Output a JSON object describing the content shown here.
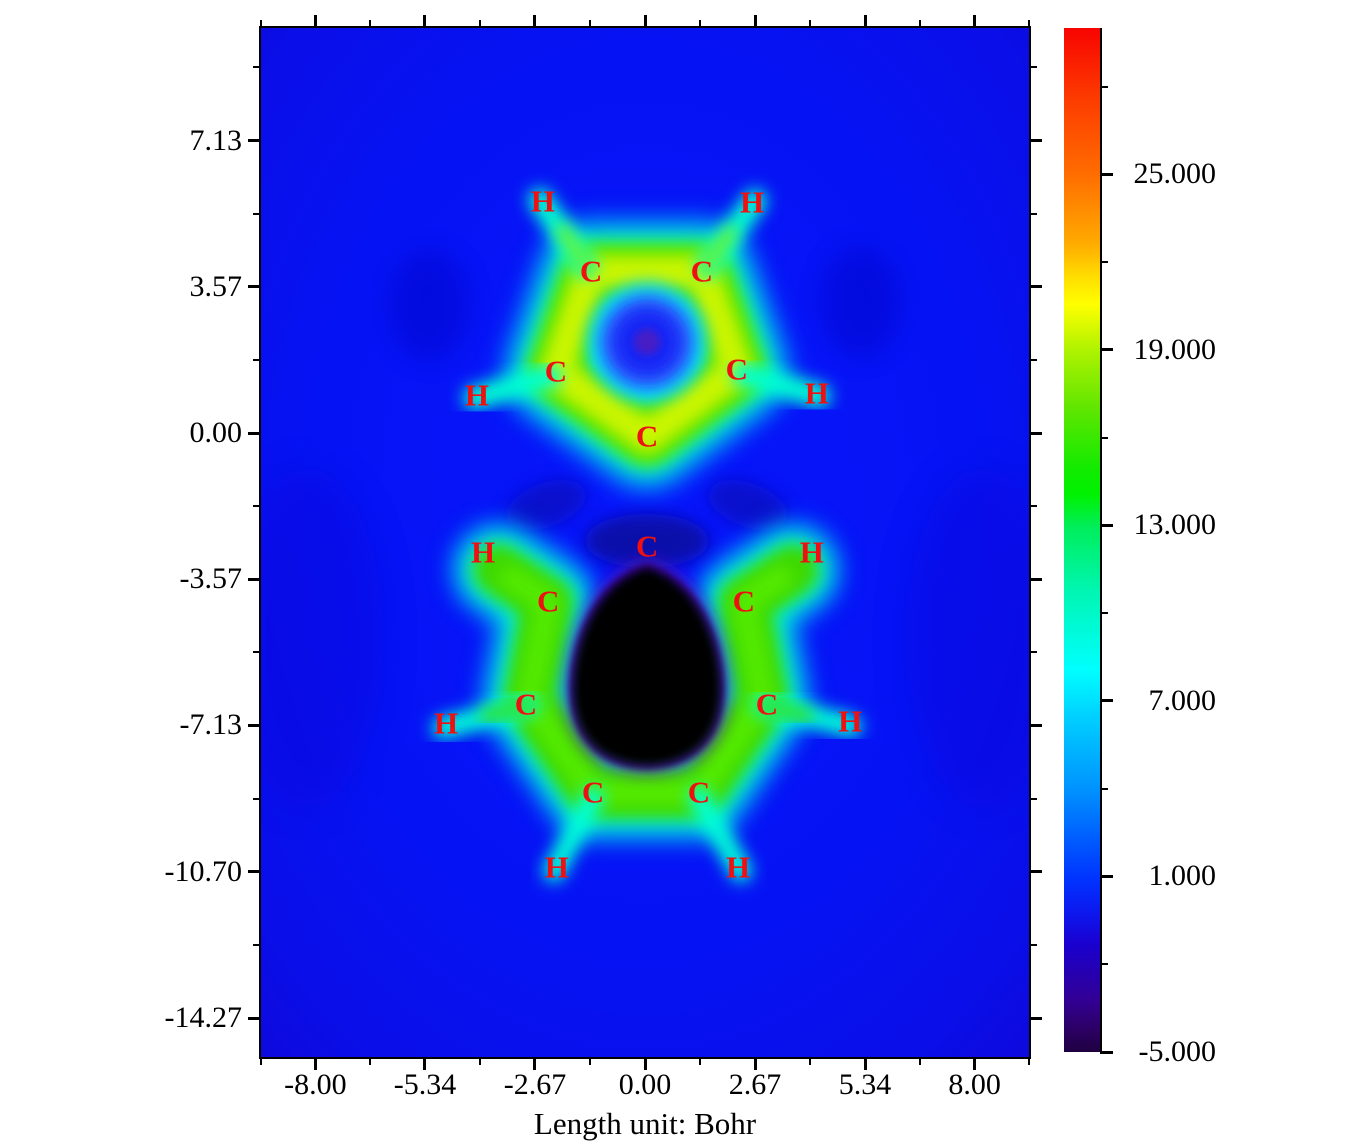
{
  "chart_data": {
    "type": "heatmap",
    "title": "",
    "xlabel": "Length unit: Bohr",
    "x_axis": {
      "major_ticks": [
        {
          "label": "-8.00",
          "value": -8.0
        },
        {
          "label": "-5.34",
          "value": -5.34
        },
        {
          "label": "-2.67",
          "value": -2.67
        },
        {
          "label": "0.00",
          "value": 0.0
        },
        {
          "label": "2.67",
          "value": 2.67
        },
        {
          "label": "5.34",
          "value": 5.34
        },
        {
          "label": "8.00",
          "value": 8.0
        }
      ],
      "minor_tick_values": [
        -9.33,
        -6.67,
        -4.0,
        -1.33,
        1.33,
        4.0,
        6.67,
        9.33
      ],
      "range": [
        -9.33,
        9.33
      ]
    },
    "y_axis": {
      "major_ticks": [
        {
          "label": "7.13",
          "value": 7.13
        },
        {
          "label": "3.57",
          "value": 3.57
        },
        {
          "label": "0.00",
          "value": 0.0
        },
        {
          "label": "-3.57",
          "value": -3.57
        },
        {
          "label": "-7.13",
          "value": -7.13
        },
        {
          "label": "-10.70",
          "value": -10.7
        },
        {
          "label": "-14.27",
          "value": -14.27
        }
      ],
      "minor_tick_values": [
        8.92,
        5.35,
        1.78,
        -1.78,
        -5.35,
        -8.92,
        -12.48
      ],
      "range": [
        -15.22,
        9.86
      ]
    },
    "colorbar": {
      "major_ticks": [
        {
          "label": "25.000",
          "value": 25.0
        },
        {
          "label": "19.000",
          "value": 19.0
        },
        {
          "label": "13.000",
          "value": 13.0
        },
        {
          "label": "7.000",
          "value": 7.0
        },
        {
          "label": "1.000",
          "value": 1.0
        },
        {
          "label": "-5.000",
          "value": -5.0
        }
      ],
      "minor_tick_values": [
        28.0,
        22.0,
        16.0,
        10.0,
        4.0,
        -2.0
      ],
      "range": [
        -5.0,
        30.0
      ],
      "gradient_colors_top_to_bottom": [
        "#f80400",
        "#ff6c00",
        "#ffff00",
        "#62e600",
        "#00f200",
        "#00ffff",
        "#0092ff",
        "#0034ff",
        "#1a00cf",
        "#320093",
        "#1e0040"
      ]
    },
    "atoms": [
      {
        "element": "H",
        "x": -2.48,
        "y": 5.63
      },
      {
        "element": "H",
        "x": 2.6,
        "y": 5.61
      },
      {
        "element": "C",
        "x": -1.31,
        "y": 3.93
      },
      {
        "element": "C",
        "x": 1.38,
        "y": 3.93
      },
      {
        "element": "C",
        "x": -2.16,
        "y": 1.49
      },
      {
        "element": "C",
        "x": 2.23,
        "y": 1.54
      },
      {
        "element": "H",
        "x": -4.08,
        "y": 0.9
      },
      {
        "element": "H",
        "x": 4.17,
        "y": 0.95
      },
      {
        "element": "C",
        "x": 0.05,
        "y": -0.1
      },
      {
        "element": "C",
        "x": 0.05,
        "y": -2.78
      },
      {
        "element": "H",
        "x": -3.93,
        "y": -2.93
      },
      {
        "element": "H",
        "x": 4.05,
        "y": -2.93
      },
      {
        "element": "C",
        "x": -2.35,
        "y": -4.12
      },
      {
        "element": "C",
        "x": 2.4,
        "y": -4.12
      },
      {
        "element": "C",
        "x": -2.89,
        "y": -6.63
      },
      {
        "element": "C",
        "x": 2.96,
        "y": -6.63
      },
      {
        "element": "H",
        "x": -4.83,
        "y": -7.1
      },
      {
        "element": "H",
        "x": 4.98,
        "y": -7.05
      },
      {
        "element": "C",
        "x": -1.26,
        "y": -8.78
      },
      {
        "element": "C",
        "x": 1.31,
        "y": -8.78
      },
      {
        "element": "H",
        "x": -2.14,
        "y": -10.61
      },
      {
        "element": "H",
        "x": 2.26,
        "y": -10.61
      }
    ]
  },
  "colors": {
    "atom_label": "#ee1111",
    "axis": "#000000",
    "field_background_blue": "#0614fa"
  }
}
